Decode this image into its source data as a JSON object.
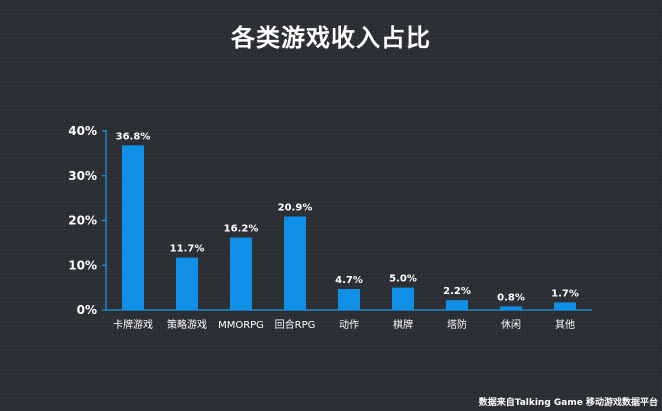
{
  "title": "各类游戏收入占比",
  "source": "数据来自Talking Game 移动游戏数据平台",
  "colors": {
    "bar": "#0f8fe6",
    "axis": "#1f86c8",
    "text": "#ffffff",
    "background": "#2b2e33"
  },
  "chart_data": {
    "type": "bar",
    "title": "各类游戏收入占比",
    "xlabel": "",
    "ylabel": "",
    "categories": [
      "卡牌游戏",
      "策略游戏",
      "MMORPG",
      "回合RPG",
      "动作",
      "棋牌",
      "塔防",
      "休闲",
      "其他"
    ],
    "values": [
      36.8,
      11.7,
      16.2,
      20.9,
      4.7,
      5.0,
      2.2,
      0.8,
      1.7
    ],
    "data_labels": [
      "36.8%",
      "11.7%",
      "16.2%",
      "20.9%",
      "4.7%",
      "5.0%",
      "2.2%",
      "0.8%",
      "1.7%"
    ],
    "ylim": [
      0,
      40
    ],
    "yticks": [
      0,
      10,
      20,
      30,
      40
    ],
    "ytick_labels": [
      "0%",
      "10%",
      "20%",
      "30%",
      "40%"
    ],
    "grid": false,
    "legend": "none"
  }
}
